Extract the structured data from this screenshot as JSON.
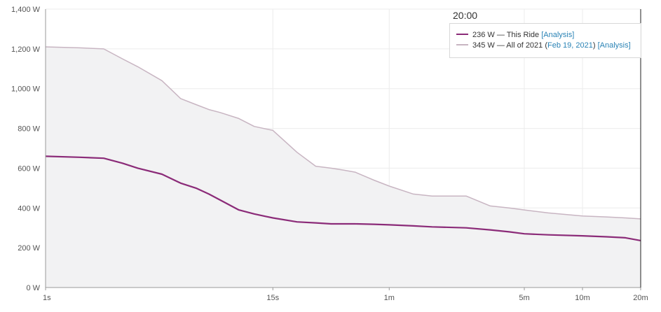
{
  "chart_data": {
    "type": "line",
    "x_scale": "log",
    "x_tick_labels": [
      "1s",
      "15s",
      "1m",
      "5m",
      "10m",
      "20m"
    ],
    "x_ticks_seconds": [
      1,
      15,
      60,
      300,
      600,
      1200
    ],
    "y_tick_labels": [
      "0 W",
      "200 W",
      "400 W",
      "600 W",
      "800 W",
      "1,000 W",
      "1,200 W",
      "1,400 W"
    ],
    "ylim": [
      0,
      1400
    ],
    "grid": true,
    "cursor_label": "20:00",
    "cursor_x_seconds": 1200,
    "series": [
      {
        "value_label": "345 W",
        "desc": " — All of 2021 (",
        "date_link": "Feb 19, 2021",
        "close": ") ",
        "link_label": "[Analysis]",
        "color": "#c8b5c2",
        "fill": "#f2f2f3",
        "x": [
          1,
          1.5,
          2,
          2.5,
          3,
          4,
          5,
          6,
          7,
          8,
          10,
          12,
          15,
          20,
          25,
          30,
          35,
          40,
          50,
          60,
          80,
          100,
          150,
          200,
          250,
          300,
          400,
          600,
          800,
          1000,
          1200
        ],
        "y": [
          1210,
          1205,
          1200,
          1150,
          1110,
          1040,
          950,
          920,
          895,
          880,
          850,
          810,
          790,
          680,
          610,
          600,
          590,
          580,
          540,
          510,
          470,
          460,
          460,
          410,
          400,
          390,
          375,
          360,
          355,
          350,
          345
        ]
      },
      {
        "value_label": "236 W",
        "desc": " — This Ride ",
        "link_label": "[Analysis]",
        "color": "#8b2b78",
        "x": [
          1,
          1.5,
          2,
          2.5,
          3,
          4,
          5,
          6,
          7,
          8,
          10,
          12,
          15,
          20,
          25,
          30,
          35,
          40,
          50,
          60,
          80,
          100,
          150,
          200,
          250,
          300,
          400,
          600,
          800,
          1000,
          1200
        ],
        "y": [
          660,
          655,
          650,
          625,
          600,
          570,
          525,
          500,
          470,
          440,
          390,
          370,
          350,
          330,
          325,
          320,
          320,
          320,
          318,
          315,
          310,
          305,
          300,
          290,
          280,
          270,
          265,
          260,
          255,
          250,
          236
        ]
      }
    ]
  }
}
